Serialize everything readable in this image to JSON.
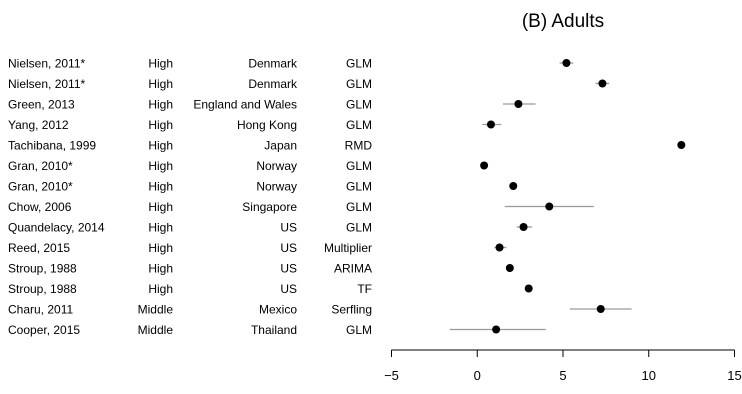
{
  "chart_data": {
    "type": "scatter",
    "subtype": "forest-plot",
    "title": "(B) Adults",
    "xlabel": "",
    "ylabel": "",
    "xlim": [
      -5,
      15
    ],
    "xticks": [
      -5,
      0,
      5,
      10,
      15
    ],
    "xtick_labels": [
      "−5",
      "0",
      "5",
      "10",
      "15"
    ],
    "grid": false,
    "columns": [
      "study",
      "income",
      "country",
      "method"
    ],
    "studies": [
      {
        "study": "Nielsen, 2011*",
        "income": "High",
        "country": "Denmark",
        "method": "GLM",
        "estimate": 5.2,
        "lower": 4.8,
        "upper": 5.6
      },
      {
        "study": "Nielsen, 2011*",
        "income": "High",
        "country": "Denmark",
        "method": "GLM",
        "estimate": 7.3,
        "lower": 6.9,
        "upper": 7.7
      },
      {
        "study": "Green, 2013",
        "income": "High",
        "country": "England and Wales",
        "method": "GLM",
        "estimate": 2.4,
        "lower": 1.5,
        "upper": 3.4
      },
      {
        "study": "Yang, 2012",
        "income": "High",
        "country": "Hong Kong",
        "method": "GLM",
        "estimate": 0.8,
        "lower": 0.3,
        "upper": 1.4
      },
      {
        "study": "Tachibana, 1999",
        "income": "High",
        "country": "Japan",
        "method": "RMD",
        "estimate": 11.9,
        "lower": 11.9,
        "upper": 11.9
      },
      {
        "study": "Gran, 2010*",
        "income": "High",
        "country": "Norway",
        "method": "GLM",
        "estimate": 0.4,
        "lower": 0.4,
        "upper": 0.4
      },
      {
        "study": "Gran, 2010*",
        "income": "High",
        "country": "Norway",
        "method": "GLM",
        "estimate": 2.1,
        "lower": 1.9,
        "upper": 2.3
      },
      {
        "study": "Chow, 2006",
        "income": "High",
        "country": "Singapore",
        "method": "GLM",
        "estimate": 4.2,
        "lower": 1.6,
        "upper": 6.8
      },
      {
        "study": "Quandelacy, 2014",
        "income": "High",
        "country": "US",
        "method": "GLM",
        "estimate": 2.7,
        "lower": 2.3,
        "upper": 3.2
      },
      {
        "study": "Reed, 2015",
        "income": "High",
        "country": "US",
        "method": "Multiplier",
        "estimate": 1.3,
        "lower": 1.0,
        "upper": 1.7
      },
      {
        "study": "Stroup, 1988",
        "income": "High",
        "country": "US",
        "method": "ARIMA",
        "estimate": 1.9,
        "lower": 1.9,
        "upper": 1.9
      },
      {
        "study": "Stroup, 1988",
        "income": "High",
        "country": "US",
        "method": "TF",
        "estimate": 3.0,
        "lower": 3.0,
        "upper": 3.0
      },
      {
        "study": "Charu, 2011",
        "income": "Middle",
        "country": "Mexico",
        "method": "Serfling",
        "estimate": 7.2,
        "lower": 5.4,
        "upper": 9.0
      },
      {
        "study": "Cooper, 2015",
        "income": "Middle",
        "country": "Thailand",
        "method": "GLM",
        "estimate": 1.1,
        "lower": -1.6,
        "upper": 4.0
      }
    ],
    "colors": {
      "point": "#000000",
      "ci_line": "#9a9a9a",
      "axis": "#000000"
    }
  }
}
